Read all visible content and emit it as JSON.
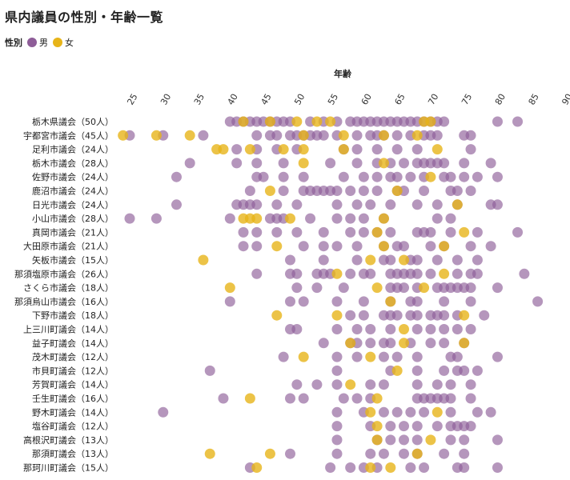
{
  "title": "県内議員の性別・年齢一覧",
  "legend": {
    "label": "性別",
    "items": [
      {
        "name": "男",
        "color": "#8e5d98"
      },
      {
        "name": "女",
        "color": "#e7b419"
      }
    ]
  },
  "chart_data": {
    "type": "scatter",
    "xlabel": "年齢",
    "xlim": [
      23,
      90
    ],
    "xticks": [
      25,
      30,
      35,
      40,
      45,
      50,
      55,
      60,
      65,
      70,
      75,
      80,
      85,
      90
    ],
    "grid": false,
    "legend_position": "top-left",
    "categories": [
      {
        "name": "栃木県議会（50人）",
        "male": [
          40,
          41,
          42,
          43,
          44,
          45,
          46,
          47,
          48,
          49,
          52,
          54,
          56,
          58,
          59,
          60,
          61,
          62,
          63,
          64,
          65,
          66,
          67,
          68,
          69,
          70,
          71,
          72,
          80,
          83
        ],
        "female": [
          42,
          46,
          50,
          53,
          55,
          69,
          70
        ]
      },
      {
        "name": "宇都宮市議会（45人）",
        "male": [
          25,
          30,
          36,
          44,
          46,
          47,
          49,
          50,
          51,
          52,
          53,
          54,
          56,
          59,
          61,
          62,
          63,
          65,
          67,
          69,
          70,
          71,
          75,
          76
        ],
        "female": [
          24,
          29,
          34,
          51,
          57,
          63,
          68
        ]
      },
      {
        "name": "足利市議会（24人）",
        "male": [
          41,
          44,
          47,
          50,
          57,
          59,
          62,
          65,
          68,
          76
        ],
        "female": [
          38,
          39,
          43,
          48,
          51,
          57,
          71
        ]
      },
      {
        "name": "栃木市議会（28人）",
        "male": [
          34,
          41,
          44,
          48,
          55,
          59,
          62,
          64,
          66,
          68,
          69,
          70,
          71,
          72,
          75,
          79
        ],
        "female": [
          51,
          63
        ]
      },
      {
        "name": "佐野市議会（24人）",
        "male": [
          32,
          44,
          45,
          48,
          51,
          57,
          60,
          62,
          64,
          65,
          67,
          69,
          72,
          73,
          75,
          77,
          80
        ],
        "female": [
          70
        ]
      },
      {
        "name": "鹿沼市議会（24人）",
        "male": [
          43,
          48,
          51,
          52,
          53,
          54,
          55,
          56,
          58,
          60,
          62,
          65,
          66,
          69,
          73,
          74,
          76
        ],
        "female": [
          46,
          65
        ]
      },
      {
        "name": "日光市議会（24人）",
        "male": [
          32,
          41,
          42,
          43,
          44,
          47,
          50,
          56,
          59,
          61,
          64,
          68,
          71,
          74,
          79,
          80
        ],
        "female": [
          74
        ]
      },
      {
        "name": "小山市議会（28人）",
        "male": [
          25,
          29,
          40,
          46,
          47,
          48,
          52,
          56,
          58,
          60,
          63,
          71,
          73
        ],
        "female": [
          42,
          43,
          44,
          49,
          63
        ]
      },
      {
        "name": "真岡市議会（21人）",
        "male": [
          42,
          44,
          47,
          50,
          54,
          58,
          60,
          62,
          64,
          68,
          69,
          70,
          73,
          77,
          83
        ],
        "female": [
          62,
          75
        ]
      },
      {
        "name": "大田原市議会（21人）",
        "male": [
          42,
          44,
          51,
          54,
          56,
          59,
          63,
          65,
          66,
          70,
          72,
          76,
          79
        ],
        "female": [
          47,
          63,
          72
        ]
      },
      {
        "name": "矢板市議会（15人）",
        "male": [
          49,
          54,
          59,
          63,
          64,
          67,
          68,
          71,
          74,
          77
        ],
        "female": [
          36,
          61,
          66
        ]
      },
      {
        "name": "那須塩原市議会（26人）",
        "male": [
          44,
          49,
          50,
          53,
          54,
          55,
          58,
          60,
          61,
          64,
          65,
          66,
          67,
          68,
          70,
          74,
          76,
          77,
          84
        ],
        "female": [
          56,
          72
        ]
      },
      {
        "name": "さくら市議会（18人）",
        "male": [
          50,
          53,
          57,
          64,
          65,
          66,
          68,
          71,
          72,
          73,
          74,
          75,
          76,
          80
        ],
        "female": [
          40,
          62,
          69
        ]
      },
      {
        "name": "那須烏山市議会（16人）",
        "male": [
          40,
          49,
          51,
          56,
          60,
          64,
          67,
          68,
          72,
          76,
          86
        ],
        "female": [
          64
        ]
      },
      {
        "name": "下野市議会（18人）",
        "male": [
          58,
          60,
          63,
          64,
          65,
          67,
          68,
          70,
          71,
          72,
          74,
          78
        ],
        "female": [
          47,
          56,
          75
        ]
      },
      {
        "name": "上三川町議会（14人）",
        "male": [
          49,
          50,
          56,
          59,
          61,
          64,
          68,
          70,
          72,
          74,
          76
        ],
        "female": [
          66
        ]
      },
      {
        "name": "益子町議会（14人）",
        "male": [
          54,
          58,
          59,
          61,
          63,
          64,
          67,
          70,
          72,
          75
        ],
        "female": [
          58,
          66,
          75
        ]
      },
      {
        "name": "茂木町議会（12人）",
        "male": [
          48,
          56,
          59,
          63,
          65,
          68,
          73,
          74,
          80
        ],
        "female": [
          51,
          61
        ]
      },
      {
        "name": "市貝町議会（12人）",
        "male": [
          37,
          56,
          64,
          68,
          72,
          74,
          75,
          77
        ],
        "female": [
          65
        ]
      },
      {
        "name": "芳賀町議会（14人）",
        "male": [
          50,
          53,
          56,
          61,
          63,
          68,
          71,
          73,
          76
        ],
        "female": [
          58
        ]
      },
      {
        "name": "壬生町議会（16人）",
        "male": [
          39,
          49,
          51,
          57,
          59,
          61,
          68,
          69,
          70,
          71,
          72,
          73,
          76
        ],
        "female": [
          43,
          62
        ]
      },
      {
        "name": "野木町議会（14人）",
        "male": [
          30,
          56,
          60,
          63,
          65,
          67,
          69,
          73,
          77,
          79
        ],
        "female": [
          61,
          71
        ]
      },
      {
        "name": "塩谷町議会（12人）",
        "male": [
          56,
          61,
          64,
          66,
          68,
          71,
          73,
          74,
          75,
          76
        ],
        "female": [
          62
        ]
      },
      {
        "name": "高根沢町議会（13人）",
        "male": [
          56,
          62,
          64,
          66,
          68,
          73,
          75,
          80
        ],
        "female": [
          62,
          70
        ]
      },
      {
        "name": "那須町議会（13人）",
        "male": [
          49,
          56,
          61,
          63,
          66,
          68,
          72,
          75
        ],
        "female": [
          37,
          46,
          68
        ]
      },
      {
        "name": "那珂川町議会（15人）",
        "male": [
          43,
          55,
          58,
          60,
          62,
          67,
          69,
          74,
          75,
          80
        ],
        "female": [
          44,
          61,
          64
        ]
      }
    ]
  }
}
